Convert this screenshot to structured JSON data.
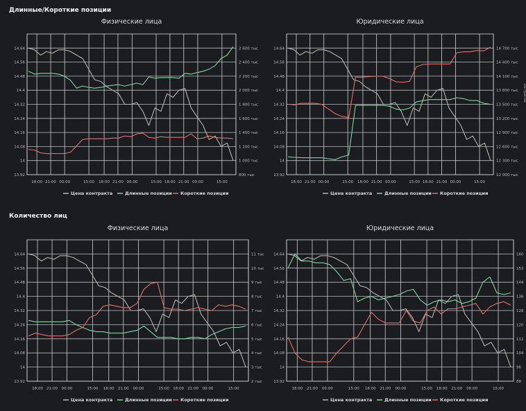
{
  "sections": [
    {
      "title": "Длинные/Короткие позиции"
    },
    {
      "title": "Количество лиц"
    }
  ],
  "colors": {
    "price": "#b8b4ae",
    "long": "#7ed7a3",
    "short": "#e3706d",
    "grid": "#d9d9d9",
    "background": "#1b1c1f"
  },
  "chart_data": [
    {
      "type": "line",
      "section": "Длинные/Короткие позиции",
      "title": "Физические лица",
      "x_ticks": [
        "18:00",
        "21:00",
        "00:00",
        "15:00",
        "18:00",
        "21:00",
        "00:00",
        "15:00",
        "18:00",
        "21:00",
        "00:00",
        "15:00"
      ],
      "y_left": {
        "ticks": [
          "13.92",
          "14",
          "14.08",
          "14.16",
          "14.24",
          "14.32",
          "14.4",
          "14.48",
          "14.56",
          "14.64"
        ],
        "range": [
          13.92,
          14.72
        ]
      },
      "y_right": {
        "label": "контрактов",
        "ticks": [
          "800 тыс",
          "1 000 тыс",
          "1 200 тыс",
          "1 400 тыс",
          "1 600 тыс",
          "1 800 тыс",
          "2 000 тыс",
          "2 200 тыс",
          "2 400 тыс",
          "2 600 тыс"
        ],
        "range": [
          800,
          2800
        ]
      },
      "legend": [
        "Цена контракта",
        "Длинные позиции",
        "Короткие позиции"
      ],
      "series": [
        {
          "name": "Цена контракта",
          "axis": "left",
          "values": [
            14.64,
            14.63,
            14.6,
            14.62,
            14.61,
            14.63,
            14.63,
            14.62,
            14.6,
            14.58,
            14.52,
            14.46,
            14.45,
            14.42,
            14.4,
            14.38,
            14.32,
            14.32,
            14.33,
            14.28,
            14.2,
            14.3,
            14.28,
            14.38,
            14.36,
            14.4,
            14.41,
            14.3,
            14.25,
            14.2,
            14.12,
            14.14,
            14.08,
            14.1,
            14.0
          ]
        },
        {
          "name": "Длинные позиции",
          "axis": "right",
          "values": [
            2270,
            2230,
            2240,
            2240,
            2240,
            2230,
            2200,
            2140,
            2030,
            2060,
            2040,
            2030,
            2040,
            2060,
            2070,
            2080,
            2060,
            2080,
            2100,
            2080,
            2190,
            2170,
            2180,
            2180,
            2180,
            2170,
            2240,
            2230,
            2250,
            2270,
            2300,
            2350,
            2450,
            2500,
            2620
          ]
        },
        {
          "name": "Короткие позиции",
          "axis": "right",
          "values": [
            1160,
            1150,
            1110,
            1100,
            1100,
            1100,
            1100,
            1120,
            1210,
            1300,
            1310,
            1310,
            1310,
            1310,
            1320,
            1320,
            1350,
            1340,
            1380,
            1390,
            1330,
            1320,
            1340,
            1330,
            1330,
            1330,
            1330,
            1380,
            1310,
            1320,
            1350,
            1330,
            1320,
            1320,
            1310
          ]
        }
      ]
    },
    {
      "type": "line",
      "section": "Длинные/Короткие позиции",
      "title": "Юридические лица",
      "x_ticks": [
        "18:00",
        "21:00",
        "00:00",
        "15:00",
        "18:00",
        "21:00",
        "00:00",
        "15:00",
        "18:00",
        "21:00",
        "00:00",
        "15:00"
      ],
      "y_left": {
        "ticks": [
          "13.92",
          "14",
          "14.08",
          "14.16",
          "14.24",
          "14.32",
          "14.4",
          "14.48",
          "14.56",
          "14.64"
        ],
        "range": [
          13.92,
          14.72
        ]
      },
      "y_right": {
        "label": "контрактов",
        "ticks": [
          "12 000 тыс",
          "12 300 тыс",
          "12 600 тыс",
          "12 900 тыс",
          "13 200 тыс",
          "13 500 тыс",
          "13 800 тыс",
          "14 100 тыс",
          "14 400 тыс",
          "14 700 тыс"
        ],
        "range": [
          12000,
          15000
        ]
      },
      "legend": [
        "Цена контракта",
        "Длинные позиции",
        "Короткие позиции"
      ],
      "series": [
        {
          "name": "Цена контракта",
          "axis": "left",
          "values": [
            14.64,
            14.63,
            14.6,
            14.62,
            14.61,
            14.63,
            14.63,
            14.62,
            14.6,
            14.58,
            14.52,
            14.46,
            14.45,
            14.42,
            14.4,
            14.38,
            14.32,
            14.32,
            14.33,
            14.28,
            14.2,
            14.3,
            14.28,
            14.38,
            14.36,
            14.4,
            14.41,
            14.3,
            14.25,
            14.2,
            14.12,
            14.14,
            14.08,
            14.1,
            14.0
          ]
        },
        {
          "name": "Длинные позиции",
          "axis": "right",
          "values": [
            12380,
            12370,
            12360,
            12360,
            12360,
            12360,
            12340,
            12320,
            12380,
            12420,
            13480,
            13480,
            13480,
            13480,
            13480,
            13460,
            13400,
            13380,
            13420,
            13550,
            13580,
            13600,
            13600,
            13600,
            13600,
            13640,
            13620,
            13580,
            13580,
            13520,
            13500
          ]
        },
        {
          "name": "Короткие позиции",
          "axis": "right",
          "values": [
            13500,
            13490,
            13520,
            13520,
            13520,
            13500,
            13400,
            13300,
            13240,
            13220,
            14080,
            14080,
            14090,
            14100,
            14100,
            14050,
            13980,
            13970,
            13990,
            14300,
            14350,
            14360,
            14360,
            14360,
            14360,
            14600,
            14620,
            14620,
            14650,
            14640,
            14720
          ]
        }
      ]
    },
    {
      "type": "line",
      "section": "Количество лиц",
      "title": "Физические лица",
      "x_ticks": [
        "18:00",
        "21:00",
        "00:00",
        "15:00",
        "18:00",
        "21:00",
        "00:00",
        "15:00",
        "18:00",
        "21:00",
        "00:00",
        "15:00"
      ],
      "y_left": {
        "ticks": [
          "13.92",
          "14",
          "14.08",
          "14.16",
          "14.24",
          "14.32",
          "14.4",
          "14.48",
          "14.56",
          "14.64"
        ],
        "range": [
          13.92,
          14.72
        ]
      },
      "y_right": {
        "ticks": [
          "2 тыс",
          "3 тыс",
          "4 тыс",
          "5 тыс",
          "6 тыс",
          "7 тыс",
          "8 тыс",
          "9 тыс",
          "10 тыс",
          "11 тыс"
        ],
        "range": [
          2,
          12
        ]
      },
      "legend": [
        "Цена контракта",
        "Длинные позиции",
        "Короткие позиции"
      ],
      "series": [
        {
          "name": "Цена контракта",
          "axis": "left",
          "values": [
            14.64,
            14.63,
            14.6,
            14.62,
            14.61,
            14.63,
            14.63,
            14.62,
            14.6,
            14.58,
            14.52,
            14.46,
            14.45,
            14.42,
            14.4,
            14.38,
            14.32,
            14.32,
            14.33,
            14.28,
            14.2,
            14.3,
            14.28,
            14.38,
            14.36,
            14.4,
            14.41,
            14.3,
            14.25,
            14.2,
            14.12,
            14.14,
            14.08,
            14.1,
            14.0
          ]
        },
        {
          "name": "Длинные позиции",
          "axis": "right",
          "values": [
            6.3,
            6.2,
            6.2,
            6.2,
            6.2,
            6.2,
            6.3,
            6.0,
            5.8,
            5.6,
            5.5,
            5.5,
            5.4,
            5.4,
            5.4,
            5.5,
            5.6,
            5.9,
            5.5,
            5.1,
            5.1,
            5.1,
            5.0,
            5.0,
            5.1,
            5.1,
            5.0,
            5.3,
            5.5,
            5.7,
            5.8,
            5.8,
            5.9
          ]
        },
        {
          "name": "Короткие позиции",
          "axis": "right",
          "values": [
            5.2,
            5.4,
            5.3,
            5.2,
            5.2,
            5.2,
            5.3,
            5.6,
            5.8,
            6.5,
            6.7,
            7.3,
            7.4,
            7.3,
            7.2,
            7.2,
            7.5,
            8.5,
            8.9,
            9.0,
            7.2,
            7.1,
            7.1,
            7.0,
            7.1,
            7.2,
            7.1,
            7.0,
            7.4,
            7.3,
            7.4,
            7.3,
            7.1
          ]
        }
      ]
    },
    {
      "type": "line",
      "section": "Количество лиц",
      "title": "Юридические лица",
      "x_ticks": [
        "18:00",
        "21:00",
        "00:00",
        "15:00",
        "18:00",
        "21:00",
        "00:00",
        "15:00",
        "18:00",
        "21:00",
        "00:00",
        "15:00"
      ],
      "y_left": {
        "ticks": [
          "13.92",
          "14",
          "14.08",
          "14.16",
          "14.24",
          "14.32",
          "14.4",
          "14.48",
          "14.56",
          "14.64"
        ],
        "range": [
          13.92,
          14.72
        ]
      },
      "y_right": {
        "ticks": [
          "88",
          "96",
          "104",
          "112",
          "120",
          "128",
          "136",
          "144",
          "152",
          "160"
        ],
        "range": [
          88,
          168
        ]
      },
      "legend": [
        "Цена контракта",
        "Длинные позиции",
        "Короткие позиции"
      ],
      "series": [
        {
          "name": "Цена контракта",
          "axis": "left",
          "values": [
            14.64,
            14.63,
            14.6,
            14.62,
            14.61,
            14.63,
            14.63,
            14.62,
            14.6,
            14.58,
            14.52,
            14.46,
            14.45,
            14.42,
            14.4,
            14.38,
            14.32,
            14.32,
            14.33,
            14.28,
            14.2,
            14.3,
            14.28,
            14.38,
            14.36,
            14.4,
            14.41,
            14.3,
            14.25,
            14.2,
            14.12,
            14.14,
            14.08,
            14.1,
            14.0
          ]
        },
        {
          "name": "Длинные позиции",
          "axis": "right",
          "values": [
            152,
            160,
            156,
            156,
            155,
            155,
            154,
            150,
            145,
            146,
            133,
            135,
            136,
            134,
            135,
            136,
            137,
            139,
            140,
            134,
            131,
            133,
            134,
            133,
            134,
            132,
            133,
            135,
            144,
            147,
            138,
            137,
            138
          ]
        },
        {
          "name": "Короткие позиции",
          "axis": "right",
          "values": [
            113,
            104,
            100,
            99,
            99,
            99,
            99,
            104,
            108,
            112,
            113,
            120,
            127,
            123,
            121,
            121,
            121,
            128,
            122,
            121,
            128,
            130,
            126,
            129,
            129,
            130,
            131,
            132,
            126,
            130,
            132,
            133,
            131
          ]
        }
      ]
    }
  ]
}
